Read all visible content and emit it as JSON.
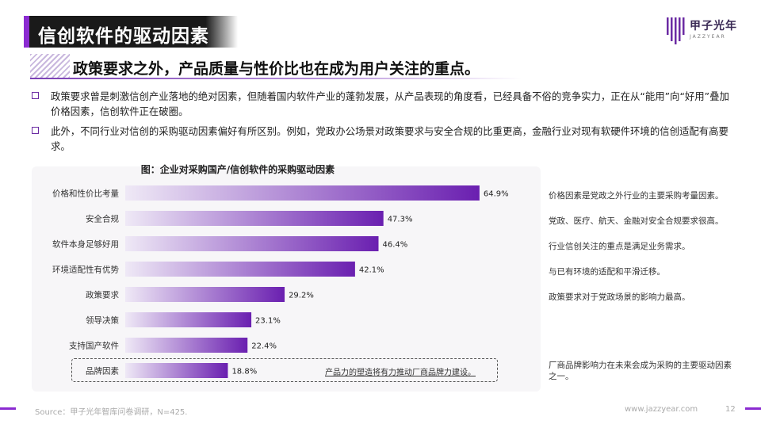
{
  "header": {
    "title": "信创软件的驱动因素",
    "logo_name": "甲子光年",
    "logo_sub": "JAZZYEAR"
  },
  "subtitle": "政策要求之外，产品质量与性价比也在成为用户关注的重点。",
  "bullets": [
    "政策要求曾是刺激信创产业落地的绝对因素，但随着国内软件产业的蓬勃发展，从产品表现的角度看，已经具备不俗的竞争实力，正在从“能用”向“好用”叠加价格因素，信创软件正在破圈。",
    "此外，不同行业对信创的采购驱动因素偏好有所区别。例如，党政办公场景对政策要求与安全合规的比重更高，金融行业对现有软硬件环境的信创适配有高要求。"
  ],
  "chart_data": {
    "type": "bar",
    "orientation": "horizontal",
    "title": "图：企业对采购国产/信创软件的采购驱动因素",
    "categories": [
      "价格和性价比考量",
      "安全合规",
      "软件本身足够好用",
      "环境适配性有优势",
      "政策要求",
      "领导决策",
      "支持国产软件",
      "品牌因素"
    ],
    "values": [
      64.9,
      47.3,
      46.4,
      42.1,
      29.2,
      23.1,
      22.4,
      18.8
    ],
    "value_labels": [
      "64.9%",
      "47.3%",
      "46.4%",
      "42.1%",
      "29.2%",
      "23.1%",
      "22.4%",
      "18.8%"
    ],
    "unit": "%",
    "xlim": [
      0,
      70
    ],
    "bar_gradient": [
      "#efe9f6",
      "#6a1fb0"
    ],
    "annotation": "产品力的塑造将有力推动厂商品牌力建设。"
  },
  "notes": [
    "价格因素是党政之外行业的主要采购考量因素。",
    "党政、医疗、航天、金融对安全合规要求很高。",
    "行业信创关注的重点是满足业务需求。",
    "与已有环境的适配和平滑迁移。",
    "政策要求对于党政场景的影响力最高。",
    "厂商品牌影响力在未来会成为采购的主要驱动因素之一。"
  ],
  "footer": {
    "source": "Source：甲子光年智库问卷调研，N=425.",
    "url": "www.jazzyear.com",
    "page": "12"
  },
  "colors": {
    "accent": "#8b2bd1",
    "title_bg": "#1a1a1a"
  }
}
